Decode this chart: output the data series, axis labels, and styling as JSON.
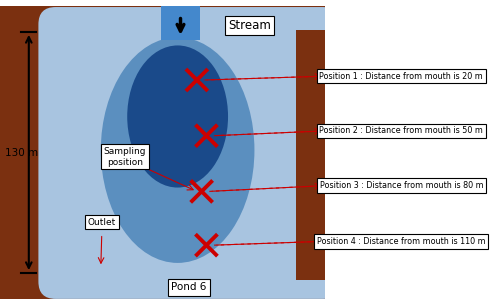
{
  "bg_color": "#7B3010",
  "pond_light_blue": "#A8C4E0",
  "pond_medium_blue": "#5B8FBF",
  "pond_dark_blue": "#1A4A8A",
  "stream_blue": "#4488CC",
  "white": "#FFFFFF",
  "red_x_color": "#CC0000",
  "black": "#000000",
  "positions": [
    "Position 1 : Distance from mouth is 20 m",
    "Position 2 : Distance from mouth is 50 m",
    "Position 3 : Distance from mouth is 80 m",
    "Position 4 : Distance from mouth is 110 m"
  ],
  "stream_label": "Stream",
  "pond_label": "Pond 6",
  "outlet_label": "Outlet",
  "sampling_label": "Sampling\nposition",
  "dim_label": "130 m",
  "figw": 5.0,
  "figh": 3.05,
  "dpi": 100
}
